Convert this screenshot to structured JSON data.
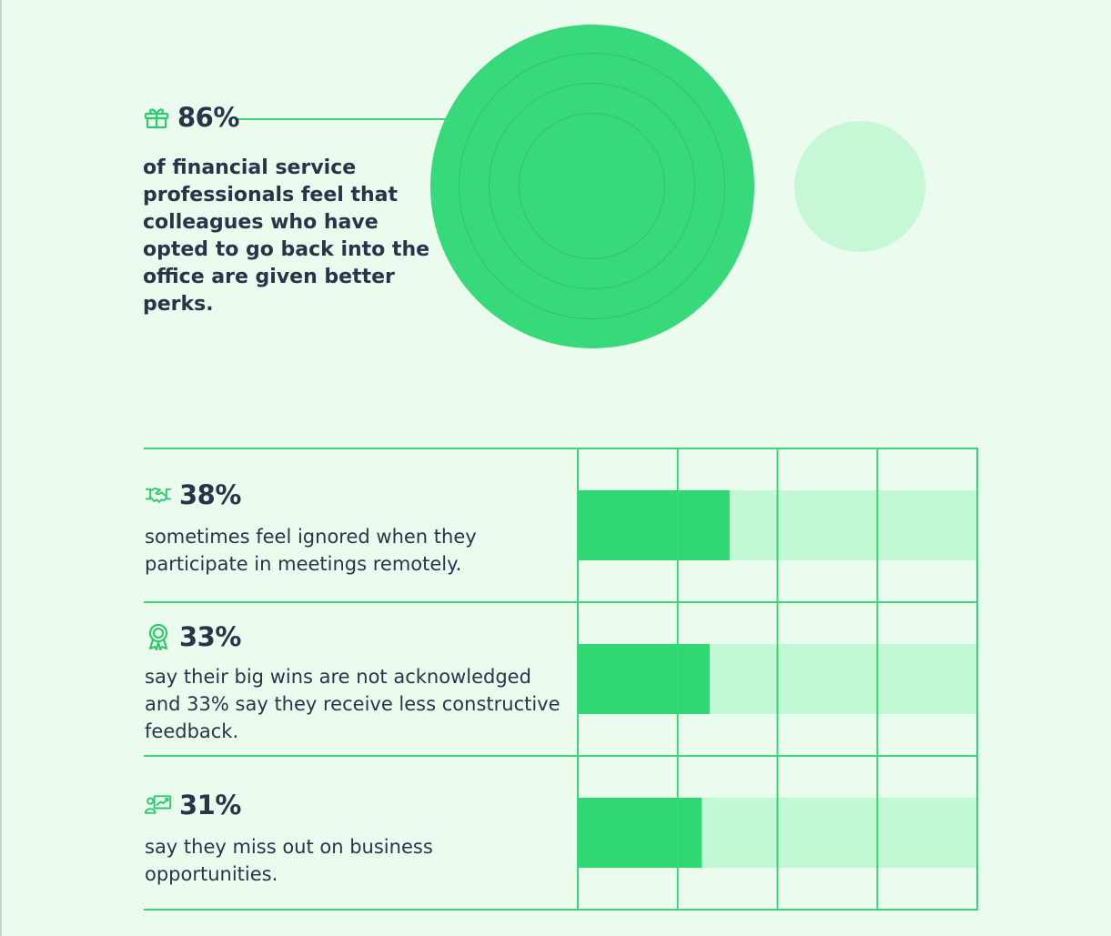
{
  "top_stat": {
    "value": "86%",
    "icon": "gift-icon",
    "description": "of financial service professionals feel that colleagues who have opted to go back into the office are given better perks."
  },
  "rows": [
    {
      "value": "38%",
      "icon": "handshake-icon",
      "description": "sometimes feel ignored when they participate in meetings remotely."
    },
    {
      "value": "33%",
      "icon": "award-badge-icon",
      "description": "say their big wins are not acknowledged and 33% say they receive less constructive feedback."
    },
    {
      "value": "31%",
      "icon": "presentation-growth-icon",
      "description": "say they miss out on business opportunities."
    }
  ],
  "chart_data": {
    "type": "bar",
    "orientation": "horizontal",
    "categories": [
      "38%",
      "33%",
      "31%"
    ],
    "values": [
      38,
      33,
      31
    ],
    "xlim": [
      0,
      100
    ],
    "grid": true,
    "colors": {
      "filled": "#2fd872",
      "remainder": "#c3f8d5",
      "grid": "#3ad67a"
    }
  },
  "colors": {
    "accent": "#38d97a",
    "text": "#2a3449",
    "background": "#ebfcee"
  }
}
